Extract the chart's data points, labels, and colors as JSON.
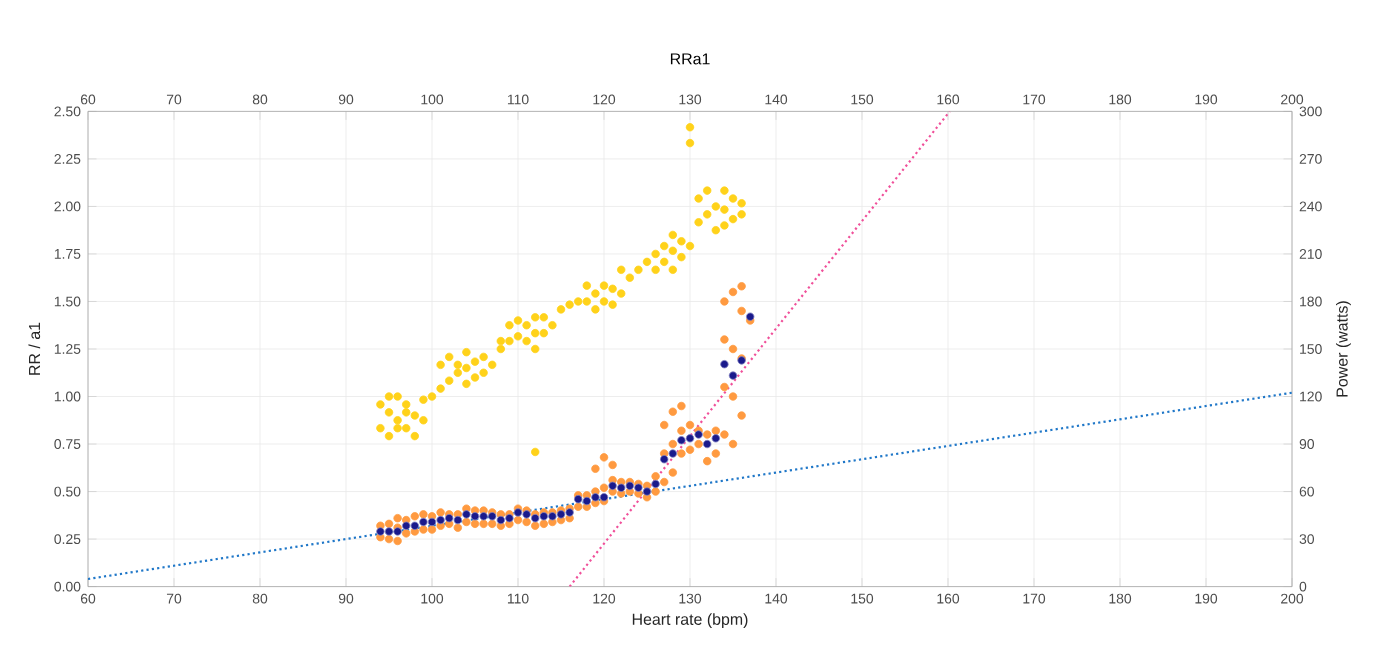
{
  "chart_data": {
    "type": "scatter",
    "title": "RRa1",
    "xlabel": "Heart rate (bpm)",
    "ylabel": "RR / a1",
    "y2label": "Power (watts)",
    "xlim": [
      60,
      200
    ],
    "xticks": [
      60,
      70,
      80,
      90,
      100,
      110,
      120,
      130,
      140,
      150,
      160,
      170,
      180,
      190,
      200
    ],
    "x2lim": [
      60,
      200
    ],
    "x2ticks": [
      60,
      70,
      80,
      90,
      100,
      110,
      120,
      130,
      140,
      150,
      160,
      170,
      180,
      190,
      200
    ],
    "ylim": [
      0,
      2.5
    ],
    "yticks": [
      {
        "value": 0,
        "label": "0.00"
      },
      {
        "value": 0.25,
        "label": "0.25"
      },
      {
        "value": 0.5,
        "label": "0.50"
      },
      {
        "value": 0.75,
        "label": "0.75"
      },
      {
        "value": 1,
        "label": "1.00"
      },
      {
        "value": 1.25,
        "label": "1.25"
      },
      {
        "value": 1.5,
        "label": "1.50"
      },
      {
        "value": 1.75,
        "label": "1.75"
      },
      {
        "value": 2,
        "label": "2.00"
      },
      {
        "value": 2.25,
        "label": "2.25"
      },
      {
        "value": 2.5,
        "label": "2.50"
      }
    ],
    "y2lim": [
      0,
      300
    ],
    "y2ticks": [
      0,
      30,
      60,
      90,
      120,
      150,
      180,
      210,
      240,
      270,
      300
    ],
    "grid": true,
    "series": [
      {
        "axis": "y2",
        "marker": "circle",
        "color": "#ffd21a",
        "x": [
          94,
          94,
          95,
          95,
          95,
          96,
          96,
          96,
          97,
          97,
          97,
          98,
          98,
          99,
          99,
          100,
          101,
          101,
          102,
          102,
          103,
          103,
          104,
          104,
          104,
          105,
          105,
          106,
          106,
          107,
          108,
          108,
          109,
          109,
          110,
          110,
          111,
          111,
          112,
          112,
          112,
          112,
          113,
          113,
          114,
          115,
          116,
          117,
          118,
          118,
          119,
          119,
          120,
          120,
          121,
          121,
          122,
          122,
          123,
          124,
          125,
          126,
          126,
          127,
          127,
          128,
          128,
          128,
          129,
          129,
          130,
          130,
          130,
          131,
          131,
          132,
          132,
          133,
          133,
          134,
          134,
          134,
          135,
          135,
          136,
          136
        ],
        "values": [
          100,
          115,
          95,
          110,
          120,
          105,
          120,
          100,
          100,
          115,
          110,
          95,
          108,
          105,
          118,
          120,
          125,
          140,
          130,
          145,
          135,
          140,
          128,
          138,
          148,
          132,
          142,
          135,
          145,
          140,
          150,
          155,
          155,
          165,
          158,
          168,
          155,
          165,
          150,
          160,
          170,
          85,
          160,
          170,
          165,
          175,
          178,
          180,
          180,
          190,
          175,
          185,
          180,
          190,
          178,
          188,
          185,
          200,
          195,
          200,
          205,
          200,
          210,
          205,
          215,
          200,
          212,
          222,
          208,
          218,
          215,
          280,
          290,
          230,
          245,
          235,
          250,
          225,
          240,
          228,
          238,
          250,
          232,
          245,
          235,
          242
        ]
      },
      {
        "marker": "circle",
        "color": "#ff9a40",
        "x": [
          94,
          94,
          95,
          95,
          96,
          96,
          96,
          97,
          97,
          98,
          98,
          99,
          99,
          100,
          100,
          101,
          101,
          102,
          102,
          103,
          103,
          104,
          104,
          105,
          105,
          106,
          106,
          107,
          107,
          108,
          108,
          109,
          109,
          110,
          110,
          111,
          111,
          112,
          112,
          113,
          113,
          114,
          114,
          115,
          115,
          116,
          116,
          117,
          117,
          118,
          118,
          119,
          119,
          119,
          120,
          120,
          120,
          121,
          121,
          121,
          122,
          122,
          123,
          123,
          124,
          124,
          125,
          125,
          126,
          126,
          127,
          127,
          127,
          128,
          128,
          128,
          129,
          129,
          129,
          130,
          130,
          131,
          131,
          132,
          132,
          133,
          133,
          134,
          134,
          134,
          134,
          135,
          135,
          135,
          135,
          136,
          136,
          136,
          136,
          137
        ],
        "values": [
          0.26,
          0.32,
          0.25,
          0.33,
          0.24,
          0.31,
          0.36,
          0.28,
          0.35,
          0.29,
          0.37,
          0.3,
          0.38,
          0.3,
          0.37,
          0.32,
          0.39,
          0.33,
          0.38,
          0.31,
          0.38,
          0.34,
          0.41,
          0.33,
          0.4,
          0.33,
          0.4,
          0.33,
          0.39,
          0.32,
          0.38,
          0.33,
          0.38,
          0.35,
          0.41,
          0.34,
          0.4,
          0.32,
          0.38,
          0.33,
          0.39,
          0.34,
          0.39,
          0.35,
          0.4,
          0.36,
          0.41,
          0.42,
          0.48,
          0.42,
          0.48,
          0.44,
          0.5,
          0.62,
          0.45,
          0.52,
          0.68,
          0.5,
          0.56,
          0.64,
          0.49,
          0.55,
          0.5,
          0.55,
          0.49,
          0.54,
          0.47,
          0.53,
          0.5,
          0.58,
          0.55,
          0.7,
          0.85,
          0.6,
          0.75,
          0.92,
          0.7,
          0.82,
          0.95,
          0.72,
          0.85,
          0.75,
          0.82,
          0.66,
          0.8,
          0.7,
          0.82,
          0.8,
          1.05,
          1.3,
          1.5,
          0.75,
          1.0,
          1.25,
          1.55,
          0.9,
          1.2,
          1.45,
          1.58,
          1.4
        ]
      },
      {
        "type": "line",
        "line_style": "dotted",
        "marker": "none",
        "color": "#1f77c8",
        "x": [
          60,
          200
        ],
        "values": [
          0.04,
          1.02
        ]
      },
      {
        "type": "line",
        "line_style": "dotted",
        "marker": "none",
        "color": "#f0509a",
        "x": [
          116,
          160.2
        ],
        "values": [
          0,
          2.5
        ]
      },
      {
        "marker": "circle",
        "color": "#1a1a8c",
        "x": [
          94,
          95,
          96,
          97,
          98,
          99,
          100,
          101,
          102,
          103,
          104,
          105,
          106,
          107,
          108,
          109,
          110,
          111,
          112,
          113,
          114,
          115,
          116,
          117,
          118,
          119,
          120,
          121,
          122,
          123,
          124,
          125,
          126,
          127,
          128,
          129,
          130,
          131,
          132,
          133,
          134,
          135,
          136,
          137
        ],
        "values": [
          0.29,
          0.29,
          0.29,
          0.32,
          0.32,
          0.34,
          0.34,
          0.35,
          0.36,
          0.35,
          0.38,
          0.37,
          0.37,
          0.37,
          0.35,
          0.36,
          0.39,
          0.38,
          0.36,
          0.37,
          0.37,
          0.38,
          0.39,
          0.46,
          0.45,
          0.47,
          0.47,
          0.53,
          0.52,
          0.53,
          0.52,
          0.5,
          0.54,
          0.67,
          0.7,
          0.77,
          0.78,
          0.8,
          0.75,
          0.78,
          1.17,
          1.11,
          1.19,
          1.42
        ]
      }
    ]
  }
}
